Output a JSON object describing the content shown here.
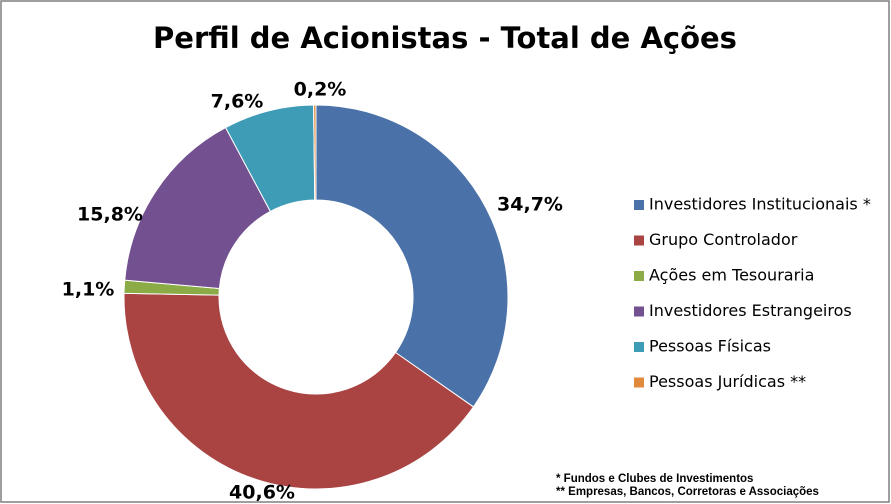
{
  "chart_data": {
    "type": "donut",
    "title": "Perfil de Acionistas - Total de Ações",
    "categories": [
      "Investidores Institucionais *",
      "Grupo Controlador",
      "Ações em Tesouraria",
      "Investidores Estrangeiros",
      "Pessoas Físicas",
      "Pessoas Jurídicas **"
    ],
    "values": [
      34.7,
      40.6,
      1.1,
      15.8,
      7.6,
      0.2
    ],
    "value_labels": [
      "34,7%",
      "40,6%",
      "1,1%",
      "15,8%",
      "7,6%",
      "0,2%"
    ],
    "colors": [
      "#4a72a8",
      "#a94442",
      "#8aab45",
      "#735090",
      "#3e9cb7",
      "#e28a3c"
    ],
    "legend": "right",
    "annotations": [
      "* Fundos e Clubes de Investimentos",
      "** Empresas, Bancos, Corretoras e Associações"
    ]
  }
}
